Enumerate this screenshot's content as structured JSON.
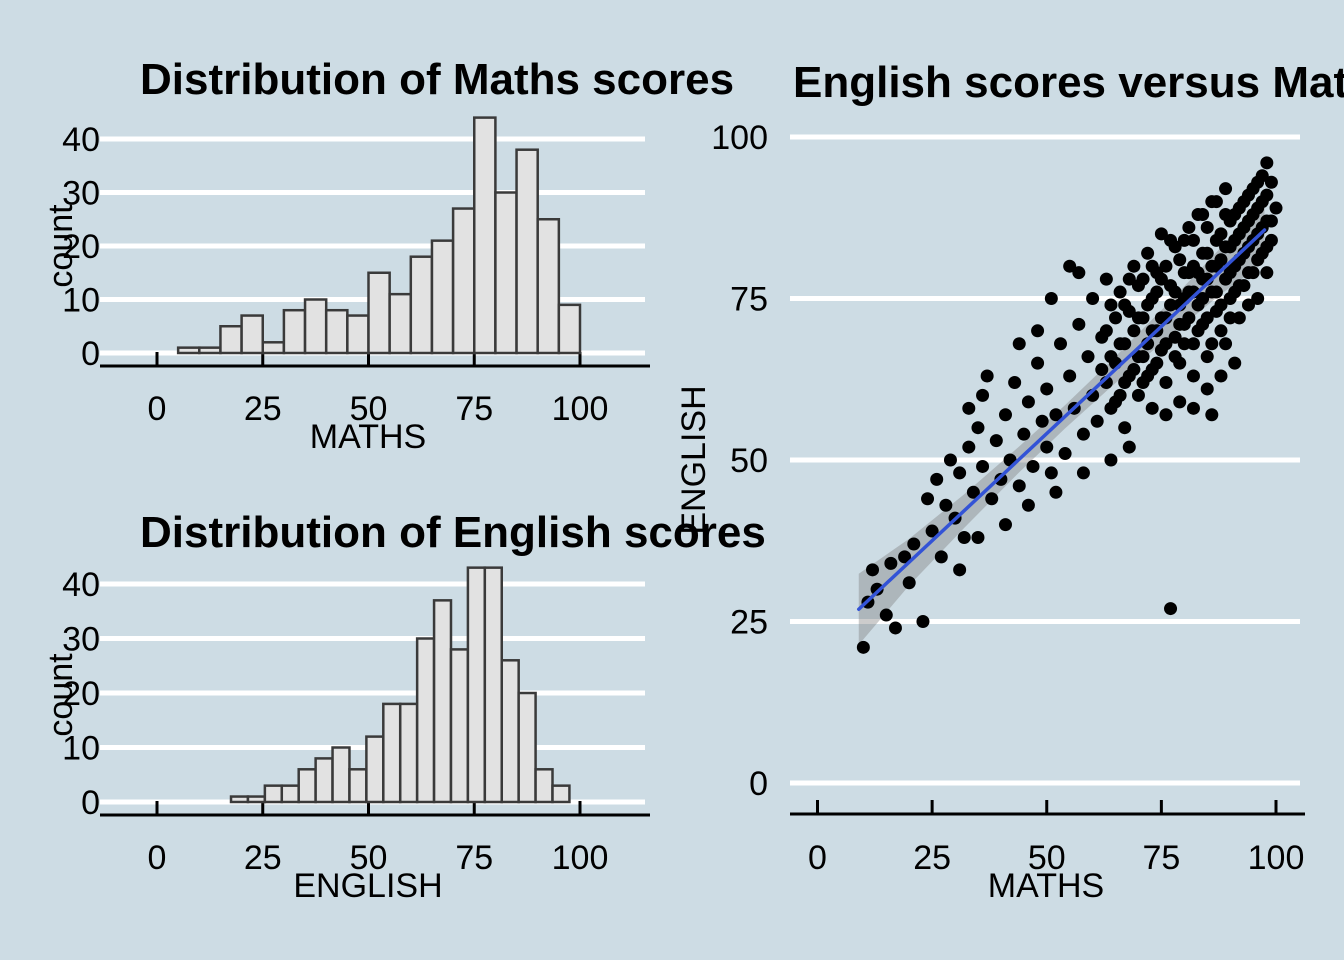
{
  "figure": {
    "background_color": "#cddce4",
    "gridline_color": "#ffffff",
    "bar_fill": "#e2e2e2",
    "bar_stroke": "#3a3a3a",
    "point_color": "#000000",
    "smooth_line_color": "#3353d6",
    "band_color": "#787878",
    "band_opacity": 0.38,
    "axis_color": "#000000"
  },
  "chart_data": [
    {
      "type": "bar",
      "role": "histogram",
      "title": "Distribution of Maths scores",
      "xlabel": "MATHS",
      "ylabel": "count",
      "bin_start": 5,
      "bin_width": 5,
      "counts": [
        1,
        1,
        5,
        7,
        2,
        8,
        10,
        8,
        7,
        15,
        11,
        18,
        21,
        27,
        44,
        30,
        38,
        25,
        9
      ],
      "x_ticks": [
        0,
        25,
        50,
        75,
        100
      ],
      "y_ticks": [
        0,
        10,
        20,
        30,
        40
      ],
      "xlim": [
        0,
        100
      ],
      "ylim": [
        0,
        45
      ],
      "grid": true,
      "legend": "none"
    },
    {
      "type": "bar",
      "role": "histogram",
      "title": "Distribution of English scores",
      "xlabel": "ENGLISH",
      "ylabel": "count",
      "bin_start": 17.5,
      "bin_width": 4,
      "counts": [
        1,
        1,
        3,
        3,
        6,
        8,
        10,
        6,
        12,
        18,
        18,
        30,
        37,
        28,
        43,
        43,
        26,
        20,
        6,
        3
      ],
      "x_ticks": [
        0,
        25,
        50,
        75,
        100
      ],
      "y_ticks": [
        0,
        10,
        20,
        30,
        40
      ],
      "xlim": [
        0,
        100
      ],
      "ylim": [
        0,
        45
      ],
      "grid": true,
      "legend": "none"
    },
    {
      "type": "scatter",
      "title": "English scores versus Maths scores",
      "xlabel": "MATHS",
      "ylabel": "ENGLISH",
      "x_ticks": [
        0,
        25,
        50,
        75,
        100
      ],
      "y_ticks": [
        0,
        25,
        50,
        75,
        100
      ],
      "xlim": [
        0,
        100
      ],
      "ylim": [
        0,
        100
      ],
      "grid": true,
      "legend": "none",
      "smooth_line": {
        "x1": 9,
        "y1": 26.9,
        "x2": 97.5,
        "y2": 85.6,
        "slope": 0.66,
        "intercept": 21
      },
      "ci_band": {
        "m": [
          9,
          20,
          32,
          44,
          54,
          64,
          76,
          88,
          97.5
        ],
        "center": [
          26.9,
          34.2,
          42.1,
          50.1,
          56.7,
          63.3,
          71.3,
          79.3,
          85.6
        ],
        "half_width": [
          5.5,
          3.6,
          2.6,
          2.0,
          1.8,
          2.0,
          2.6,
          3.6,
          5.0
        ]
      },
      "points": [
        [
          10,
          21
        ],
        [
          11,
          28
        ],
        [
          12,
          33
        ],
        [
          13,
          30
        ],
        [
          15,
          26
        ],
        [
          16,
          34
        ],
        [
          17,
          24
        ],
        [
          19,
          35
        ],
        [
          20,
          31
        ],
        [
          21,
          37
        ],
        [
          23,
          25
        ],
        [
          24,
          44
        ],
        [
          25,
          39
        ],
        [
          26,
          47
        ],
        [
          27,
          35
        ],
        [
          28,
          43
        ],
        [
          29,
          50
        ],
        [
          30,
          41
        ],
        [
          31,
          48
        ],
        [
          32,
          38
        ],
        [
          33,
          52
        ],
        [
          34,
          45
        ],
        [
          35,
          55
        ],
        [
          36,
          49
        ],
        [
          36,
          60
        ],
        [
          38,
          44
        ],
        [
          39,
          53
        ],
        [
          40,
          47
        ],
        [
          41,
          57
        ],
        [
          42,
          50
        ],
        [
          43,
          62
        ],
        [
          44,
          46
        ],
        [
          45,
          54
        ],
        [
          46,
          59
        ],
        [
          47,
          49
        ],
        [
          48,
          65
        ],
        [
          49,
          56
        ],
        [
          50,
          52
        ],
        [
          50,
          61
        ],
        [
          51,
          48
        ],
        [
          52,
          57
        ],
        [
          53,
          68
        ],
        [
          54,
          51
        ],
        [
          55,
          63
        ],
        [
          55,
          80
        ],
        [
          56,
          58
        ],
        [
          57,
          71
        ],
        [
          58,
          54
        ],
        [
          59,
          66
        ],
        [
          60,
          60
        ],
        [
          60,
          75
        ],
        [
          61,
          56
        ],
        [
          62,
          69
        ],
        [
          63,
          62
        ],
        [
          63,
          78
        ],
        [
          64,
          58
        ],
        [
          65,
          72
        ],
        [
          65,
          65
        ],
        [
          66,
          60
        ],
        [
          66,
          76
        ],
        [
          67,
          68
        ],
        [
          67,
          55
        ],
        [
          68,
          73
        ],
        [
          68,
          63
        ],
        [
          69,
          70
        ],
        [
          69,
          80
        ],
        [
          70,
          66
        ],
        [
          70,
          77
        ],
        [
          71,
          62
        ],
        [
          71,
          72
        ],
        [
          72,
          68
        ],
        [
          72,
          82
        ],
        [
          73,
          64
        ],
        [
          73,
          75
        ],
        [
          74,
          70
        ],
        [
          74,
          79
        ],
        [
          75,
          67
        ],
        [
          75,
          85
        ],
        [
          76,
          72
        ],
        [
          76,
          62
        ],
        [
          77,
          27
        ],
        [
          77,
          77
        ],
        [
          78,
          69
        ],
        [
          78,
          83
        ],
        [
          79,
          74
        ],
        [
          79,
          65
        ],
        [
          80,
          79
        ],
        [
          80,
          71
        ],
        [
          81,
          76
        ],
        [
          81,
          86
        ],
        [
          82,
          68
        ],
        [
          82,
          80
        ],
        [
          83,
          74
        ],
        [
          83,
          88
        ],
        [
          84,
          71
        ],
        [
          84,
          78
        ],
        [
          85,
          82
        ],
        [
          85,
          66
        ],
        [
          86,
          76
        ],
        [
          86,
          90
        ],
        [
          87,
          73
        ],
        [
          87,
          80
        ],
        [
          88,
          85
        ],
        [
          88,
          70
        ],
        [
          89,
          78
        ],
        [
          89,
          92
        ],
        [
          90,
          75
        ],
        [
          90,
          83
        ],
        [
          91,
          80
        ],
        [
          91,
          88
        ],
        [
          92,
          77
        ],
        [
          92,
          85
        ],
        [
          93,
          82
        ],
        [
          93,
          90
        ],
        [
          94,
          79
        ],
        [
          94,
          87
        ],
        [
          95,
          84
        ],
        [
          95,
          92
        ],
        [
          96,
          81
        ],
        [
          96,
          89
        ],
        [
          97,
          86
        ],
        [
          97,
          94
        ],
        [
          98,
          83
        ],
        [
          98,
          91
        ],
        [
          99,
          87
        ],
        [
          98,
          96
        ],
        [
          62,
          64
        ],
        [
          63,
          70
        ],
        [
          64,
          66
        ],
        [
          64,
          74
        ],
        [
          65,
          59
        ],
        [
          66,
          68
        ],
        [
          67,
          74
        ],
        [
          67,
          62
        ],
        [
          68,
          78
        ],
        [
          69,
          64
        ],
        [
          70,
          72
        ],
        [
          70,
          60
        ],
        [
          71,
          78
        ],
        [
          71,
          66
        ],
        [
          72,
          74
        ],
        [
          72,
          63
        ],
        [
          73,
          80
        ],
        [
          73,
          70
        ],
        [
          74,
          65
        ],
        [
          74,
          76
        ],
        [
          75,
          72
        ],
        [
          75,
          78
        ],
        [
          76,
          68
        ],
        [
          76,
          80
        ],
        [
          77,
          74
        ],
        [
          77,
          84
        ],
        [
          78,
          66
        ],
        [
          78,
          76
        ],
        [
          79,
          71
        ],
        [
          79,
          81
        ],
        [
          80,
          68
        ],
        [
          80,
          75
        ],
        [
          80,
          84
        ],
        [
          81,
          72
        ],
        [
          81,
          79
        ],
        [
          82,
          76
        ],
        [
          82,
          84
        ],
        [
          82,
          63
        ],
        [
          83,
          70
        ],
        [
          83,
          79
        ],
        [
          84,
          75
        ],
        [
          84,
          82
        ],
        [
          84,
          88
        ],
        [
          85,
          72
        ],
        [
          85,
          78
        ],
        [
          85,
          86
        ],
        [
          86,
          68
        ],
        [
          86,
          80
        ],
        [
          87,
          76
        ],
        [
          87,
          84
        ],
        [
          87,
          90
        ],
        [
          88,
          74
        ],
        [
          88,
          81
        ],
        [
          89,
          68
        ],
        [
          89,
          83
        ],
        [
          89,
          88
        ],
        [
          90,
          72
        ],
        [
          90,
          79
        ],
        [
          90,
          87
        ],
        [
          91,
          76
        ],
        [
          91,
          84
        ],
        [
          92,
          72
        ],
        [
          92,
          81
        ],
        [
          92,
          89
        ],
        [
          93,
          77
        ],
        [
          93,
          86
        ],
        [
          94,
          74
        ],
        [
          94,
          83
        ],
        [
          94,
          91
        ],
        [
          95,
          79
        ],
        [
          95,
          88
        ],
        [
          96,
          75
        ],
        [
          96,
          85
        ],
        [
          96,
          93
        ],
        [
          97,
          82
        ],
        [
          97,
          90
        ],
        [
          98,
          79
        ],
        [
          98,
          87
        ],
        [
          99,
          84
        ],
        [
          99,
          93
        ],
        [
          100,
          89
        ],
        [
          73,
          58
        ],
        [
          76,
          57
        ],
        [
          79,
          59
        ],
        [
          82,
          58
        ],
        [
          85,
          61
        ],
        [
          88,
          63
        ],
        [
          91,
          65
        ],
        [
          86,
          57
        ],
        [
          68,
          52
        ],
        [
          51,
          75
        ],
        [
          48,
          70
        ],
        [
          57,
          79
        ],
        [
          44,
          68
        ],
        [
          37,
          63
        ],
        [
          33,
          58
        ],
        [
          41,
          40
        ],
        [
          46,
          43
        ],
        [
          52,
          45
        ],
        [
          58,
          48
        ],
        [
          64,
          50
        ],
        [
          35,
          38
        ],
        [
          31,
          33
        ]
      ]
    }
  ]
}
